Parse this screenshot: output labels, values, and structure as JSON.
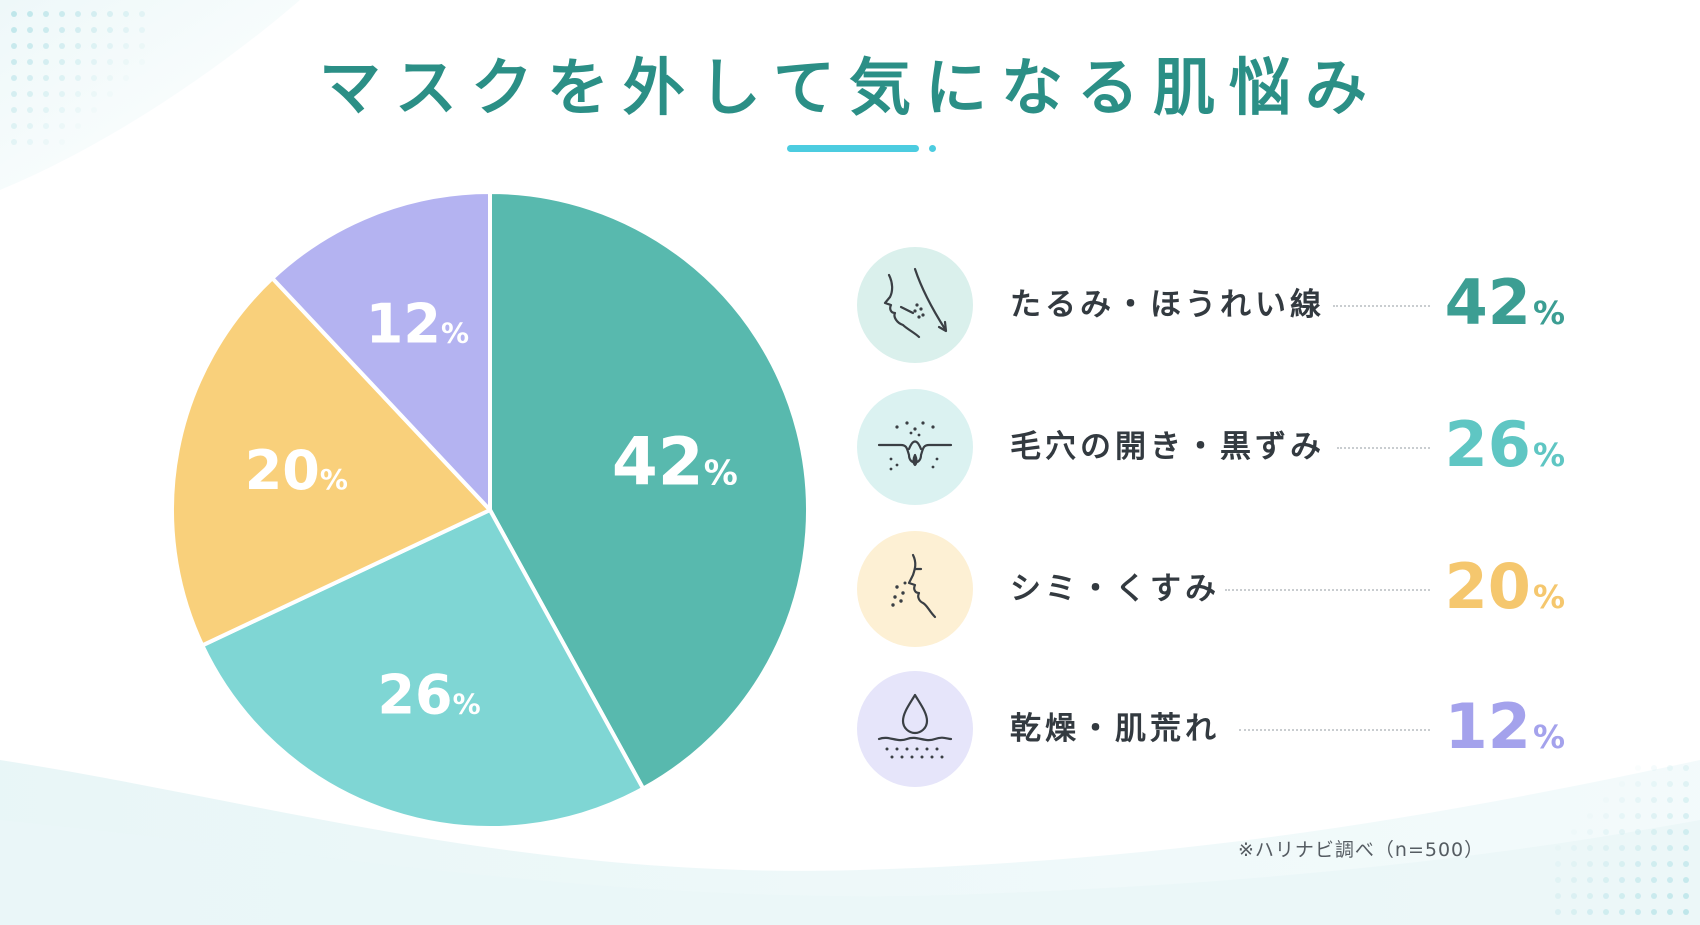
{
  "title": "マスクを外して気になる肌悩み",
  "colors": {
    "title": "#2b8f86",
    "underline": "#4ccce0",
    "teal_dark": "#58b9ae",
    "teal_light": "#7fd6d4",
    "yellow": "#f9d07b",
    "purple": "#b4b3f1",
    "value_teal": "#3c9e93",
    "value_teal_light": "#5fc6c3",
    "value_yellow": "#f5c76e",
    "value_purple": "#a4a2ec"
  },
  "chart_data": {
    "type": "pie",
    "title": "マスクを外して気になる肌悩み",
    "unit": "%",
    "slices": [
      {
        "label": "たるみ・ほうれい線",
        "value": 42,
        "value_text": "42",
        "color": "#58b9ae",
        "value_color": "#3c9e93",
        "icon_bg": "#daf0ec",
        "icon": "face-sagging-icon"
      },
      {
        "label": "毛穴の開き・黒ずみ",
        "value": 26,
        "value_text": "26",
        "color": "#7fd6d4",
        "value_color": "#5fc6c3",
        "icon_bg": "#dbf2f1",
        "icon": "pore-icon"
      },
      {
        "label": "シミ・くすみ",
        "value": 20,
        "value_text": "20",
        "color": "#f9d07b",
        "value_color": "#f5c76e",
        "icon_bg": "#fdf0d4",
        "icon": "face-spots-icon"
      },
      {
        "label": "乾燥・肌荒れ",
        "value": 12,
        "value_text": "12",
        "color": "#b4b3f1",
        "value_color": "#a4a2ec",
        "icon_bg": "#e6e5fa",
        "icon": "water-drop-icon"
      }
    ],
    "legend_position": "right",
    "note": "※ハリナビ調べ（n=500）"
  }
}
